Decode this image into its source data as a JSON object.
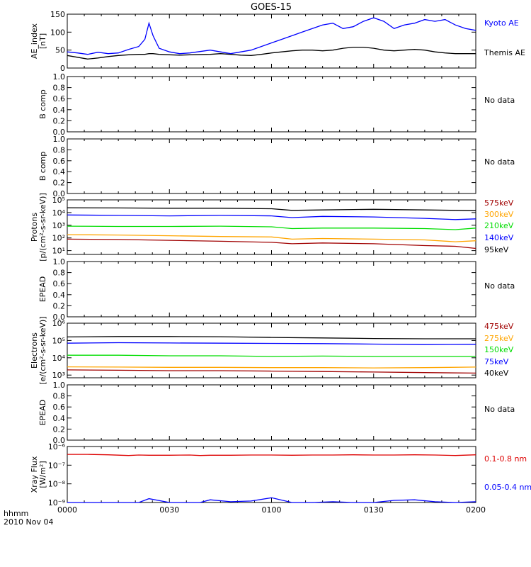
{
  "title": "GOES-15",
  "time_axis": {
    "label_line1": "hhmm",
    "label_line2": "2010 Nov 04",
    "ticks": [
      "0000",
      "0030",
      "0100",
      "0130",
      "0200"
    ]
  },
  "chart_data": [
    {
      "type": "line",
      "ylabel": [
        "AE_index",
        "[nT]"
      ],
      "ylim": [
        0,
        150
      ],
      "yticks": [
        "0",
        "50",
        "100",
        "150"
      ],
      "scale": "linear",
      "x_hours": [
        0,
        0.05,
        0.1,
        0.15,
        0.2,
        0.25,
        0.3,
        0.35,
        0.38,
        0.4,
        0.42,
        0.45,
        0.5,
        0.55,
        0.6,
        0.7,
        0.75,
        0.8,
        0.85,
        0.9,
        0.95,
        1.0,
        1.05,
        1.1,
        1.15,
        1.2,
        1.25,
        1.3,
        1.35,
        1.4,
        1.45,
        1.5,
        1.55,
        1.6,
        1.65,
        1.7,
        1.75,
        1.8,
        1.85,
        1.9,
        1.95,
        2.0
      ],
      "series": [
        {
          "name": "Kyoto AE",
          "color": "#0000ff",
          "values": [
            45,
            42,
            38,
            44,
            40,
            42,
            52,
            60,
            80,
            125,
            90,
            55,
            45,
            40,
            42,
            50,
            45,
            40,
            45,
            50,
            60,
            70,
            80,
            90,
            100,
            110,
            120,
            125,
            110,
            115,
            130,
            140,
            130,
            110,
            120,
            125,
            135,
            130,
            135,
            120,
            110,
            105
          ]
        },
        {
          "name": "Themis AE",
          "color": "#000000",
          "values": [
            35,
            30,
            25,
            28,
            32,
            35,
            37,
            38,
            38,
            40,
            40,
            38,
            37,
            36,
            37,
            38,
            40,
            38,
            36,
            35,
            38,
            42,
            45,
            48,
            50,
            50,
            48,
            50,
            55,
            58,
            58,
            55,
            50,
            48,
            50,
            52,
            50,
            45,
            42,
            40,
            40,
            40
          ]
        }
      ]
    },
    {
      "type": "line",
      "ylabel": [
        "B comp"
      ],
      "ylim": [
        0,
        1
      ],
      "yticks": [
        "0.0",
        "0.2",
        "0.4",
        "0.6",
        "0.8",
        "1.0"
      ],
      "scale": "linear",
      "status": "No data",
      "series": []
    },
    {
      "type": "line",
      "ylabel": [
        "B comp"
      ],
      "ylim": [
        0,
        1
      ],
      "yticks": [
        "0.0",
        "0.2",
        "0.4",
        "0.6",
        "0.8",
        "1.0"
      ],
      "scale": "linear",
      "status": "No data",
      "series": []
    },
    {
      "type": "line",
      "ylabel": [
        "Protons",
        "[p/(cm²-s-sr-keV)]"
      ],
      "ylim": [
        5,
        100000
      ],
      "yticks": [
        "10¹",
        "10²",
        "10³",
        "10⁴",
        "10⁵"
      ],
      "scale": "log",
      "x_hours": [
        0,
        0.25,
        0.5,
        0.75,
        1.0,
        1.1,
        1.25,
        1.5,
        1.75,
        1.9,
        2.0
      ],
      "series": [
        {
          "name": "575keV",
          "color": "#a00000",
          "values": [
            80,
            75,
            65,
            55,
            45,
            35,
            40,
            35,
            25,
            22,
            15
          ]
        },
        {
          "name": "300keV",
          "color": "#ffa500",
          "values": [
            180,
            170,
            150,
            130,
            120,
            80,
            90,
            80,
            70,
            50,
            60
          ]
        },
        {
          "name": "210keV",
          "color": "#00dd00",
          "values": [
            850,
            800,
            800,
            850,
            750,
            550,
            600,
            600,
            550,
            450,
            600
          ]
        },
        {
          "name": "140keV",
          "color": "#0000ff",
          "values": [
            6500,
            6000,
            5500,
            6000,
            5500,
            4000,
            5000,
            4500,
            3500,
            2800,
            3200
          ]
        },
        {
          "name": "95keV",
          "color": "#000000",
          "values": [
            24000,
            23000,
            22000,
            22000,
            20000,
            15000,
            16000,
            18000,
            16000,
            15000,
            14000
          ]
        }
      ]
    },
    {
      "type": "line",
      "ylabel": [
        "EPEAD"
      ],
      "ylim": [
        0,
        1
      ],
      "yticks": [
        "0.0",
        "0.2",
        "0.4",
        "0.6",
        "0.8",
        "1.0"
      ],
      "scale": "linear",
      "status": "No data",
      "series": []
    },
    {
      "type": "line",
      "ylabel": [
        "Electrons",
        "[e/(cm²-s-sr-keV)]"
      ],
      "ylim": [
        700,
        1000000
      ],
      "yticks": [
        "10³",
        "10⁴",
        "10⁵",
        "10⁶"
      ],
      "scale": "log",
      "x_hours": [
        0,
        0.25,
        0.5,
        0.75,
        1.0,
        1.25,
        1.5,
        1.75,
        2.0
      ],
      "series": [
        {
          "name": "475keV",
          "color": "#a00000",
          "values": [
            2000,
            1900,
            1800,
            1800,
            1700,
            1600,
            1500,
            1400,
            1300
          ]
        },
        {
          "name": "275keV",
          "color": "#ffa500",
          "values": [
            3000,
            2900,
            2800,
            2800,
            2700,
            2700,
            2600,
            2700,
            2900
          ]
        },
        {
          "name": "150keV",
          "color": "#00dd00",
          "values": [
            14000,
            14000,
            13000,
            13000,
            12000,
            12500,
            12000,
            12000,
            12000
          ]
        },
        {
          "name": "75keV",
          "color": "#0000ff",
          "values": [
            70000,
            75000,
            72000,
            70000,
            68000,
            66000,
            62000,
            58000,
            60000
          ]
        },
        {
          "name": "40keV",
          "color": "#000000",
          "values": [
            160000,
            170000,
            170000,
            165000,
            150000,
            140000,
            130000,
            125000,
            125000
          ]
        }
      ]
    },
    {
      "type": "line",
      "ylabel": [
        "EPEAD"
      ],
      "ylim": [
        0,
        1
      ],
      "yticks": [
        "0.0",
        "0.2",
        "0.4",
        "0.6",
        "0.8",
        "1.0"
      ],
      "scale": "linear",
      "status": "No data",
      "series": []
    },
    {
      "type": "line",
      "ylabel": [
        "Xray Flux",
        "[W/m²]"
      ],
      "ylim": [
        1e-09,
        1e-06
      ],
      "yticks": [
        "10⁻⁹",
        "10⁻⁸",
        "10⁻⁷",
        "10⁻⁶"
      ],
      "scale": "log",
      "x_hours": [
        0,
        0.1,
        0.2,
        0.3,
        0.35,
        0.4,
        0.5,
        0.6,
        0.65,
        0.7,
        0.8,
        0.9,
        1.0,
        1.1,
        1.2,
        1.3,
        1.4,
        1.5,
        1.6,
        1.7,
        1.8,
        1.9,
        2.0
      ],
      "series": [
        {
          "name": "0.1-0.8 nm",
          "color": "#dd0000",
          "values": [
            3.8e-07,
            3.8e-07,
            3.6e-07,
            3.3e-07,
            3.5e-07,
            3.4e-07,
            3.4e-07,
            3.5e-07,
            3.3e-07,
            3.4e-07,
            3.4e-07,
            3.5e-07,
            3.5e-07,
            3.4e-07,
            3.5e-07,
            3.5e-07,
            3.6e-07,
            3.5e-07,
            3.5e-07,
            3.6e-07,
            3.5e-07,
            3.3e-07,
            3.6e-07
          ]
        },
        {
          "name": "0.05-0.4 nm",
          "color": "#0000ff",
          "values": [
            1e-09,
            1e-09,
            1e-09,
            1e-09,
            1e-09,
            1.6e-09,
            1e-09,
            1e-09,
            1e-09,
            1.4e-09,
            1.1e-09,
            1.2e-09,
            1.8e-09,
            1e-09,
            1e-09,
            1.1e-09,
            1e-09,
            1e-09,
            1.3e-09,
            1.4e-09,
            1.1e-09,
            1e-09,
            1.1e-09
          ]
        }
      ]
    }
  ]
}
